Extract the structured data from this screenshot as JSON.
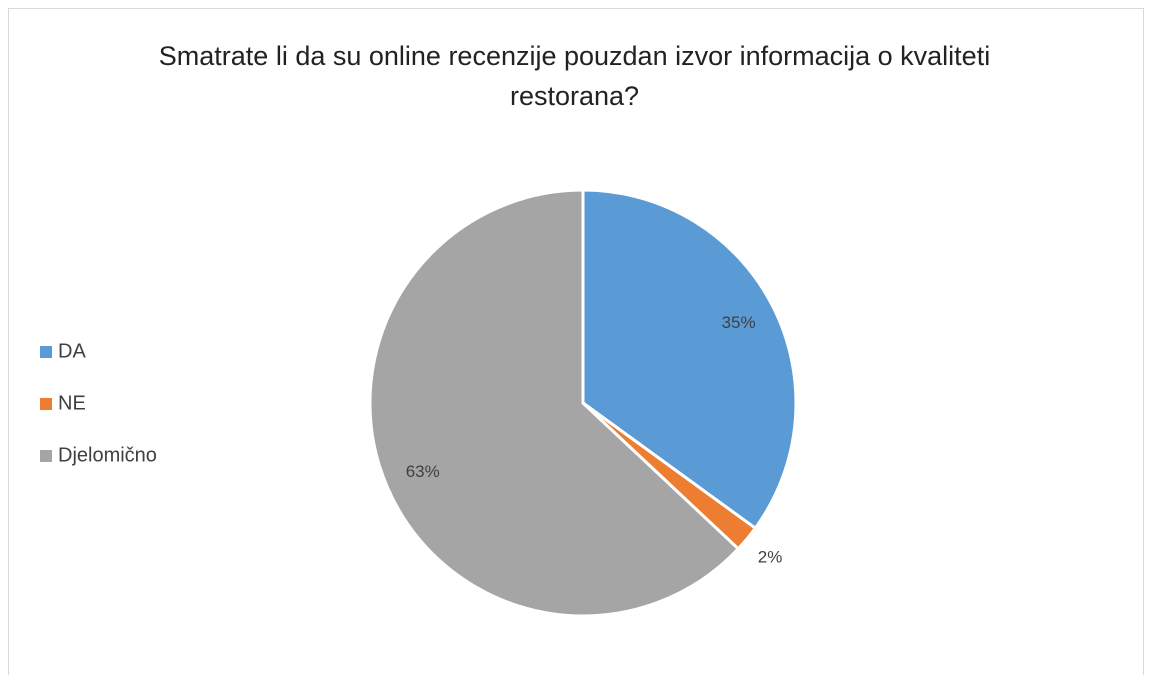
{
  "chart_data": {
    "type": "pie",
    "title": "Smatrate li da su online recenzije pouzdan izvor informacija o kvaliteti restorana?",
    "categories": [
      "DA",
      "NE",
      "Djelomično"
    ],
    "values": [
      35,
      2,
      63
    ],
    "value_labels": [
      "35%",
      "2%",
      "63%"
    ],
    "colors": [
      "#5b9bd5",
      "#ed7d31",
      "#a5a5a5"
    ],
    "legend": "left"
  }
}
